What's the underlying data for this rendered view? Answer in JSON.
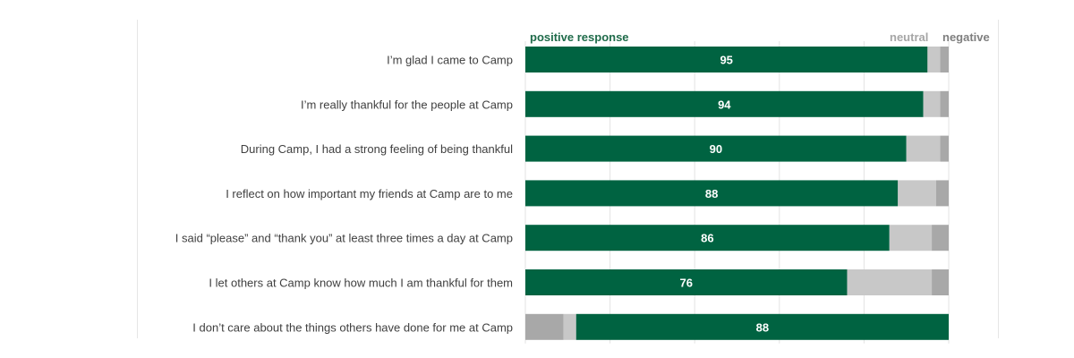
{
  "chart_data": {
    "type": "bar",
    "orientation": "horizontal",
    "stacked": true,
    "grid": true,
    "legend_position": "top",
    "series": [
      {
        "name": "positive response",
        "color": "#006341",
        "values": [
          95,
          94,
          90,
          88,
          86,
          76,
          88
        ]
      },
      {
        "name": "neutral",
        "color": "#c8c8c8",
        "values": [
          3,
          4,
          8,
          9,
          10,
          20,
          3
        ]
      },
      {
        "name": "negative",
        "color": "#a8a8a8",
        "values": [
          2,
          2,
          2,
          3,
          4,
          4,
          9
        ]
      }
    ],
    "categories": [
      "I’m glad I came to Camp",
      "I’m really thankful for the people at Camp",
      "During Camp, I had a strong feeling of being thankful",
      "I reflect on how important my friends at Camp are to me",
      "I said “please” and “thank you” at least three times a day at Camp",
      "I let others at Camp know how much I am thankful for them",
      "I don’t care about the things others have done for me at Camp"
    ],
    "reversed_rows": [
      false,
      false,
      false,
      false,
      false,
      false,
      true
    ],
    "xlim": [
      0,
      100
    ]
  },
  "legend": {
    "positive": {
      "label": "positive response",
      "color": "#1f6b4a"
    },
    "neutral": {
      "label": "neutral",
      "color": "#a6a6a6"
    },
    "negative": {
      "label": "negative",
      "color": "#7f7f7f"
    }
  }
}
